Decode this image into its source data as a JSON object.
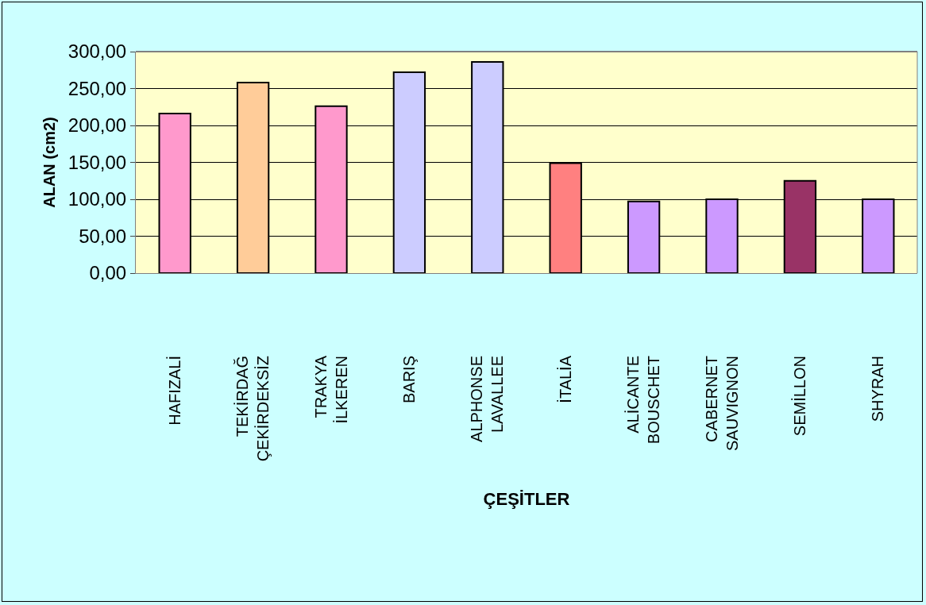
{
  "chart_data": {
    "type": "bar",
    "xlabel": "ÇEŞİTLER",
    "ylabel": "ALAN (cm2)",
    "categories": [
      "HAFIZALİ",
      "TEKİRDAĞ\nÇEKİRDEKSİZ",
      "TRAKYA\nİLKEREN",
      "BARIŞ",
      "ALPHONSE\nLAVALLEE",
      "İTALİA",
      "ALİCANTE\nBOUSCHET",
      "CABERNET\nSAUVIGNON",
      "SEMİLLON",
      "SHYRAH"
    ],
    "values": [
      216,
      258,
      226,
      272,
      286,
      149,
      97,
      100,
      125,
      100
    ],
    "colors": [
      "#ff99cc",
      "#ffcc99",
      "#ff99cc",
      "#ccccff",
      "#ccccff",
      "#ff8080",
      "#cc99ff",
      "#cc99ff",
      "#993366",
      "#cc99ff"
    ],
    "ylim": [
      0,
      300
    ],
    "yticks": [
      {
        "value": 0,
        "label": "0,00"
      },
      {
        "value": 50,
        "label": "50,00"
      },
      {
        "value": 100,
        "label": "100,00"
      },
      {
        "value": 150,
        "label": "150,00"
      },
      {
        "value": 200,
        "label": "200,00"
      },
      {
        "value": 250,
        "label": "250,00"
      },
      {
        "value": 300,
        "label": "300,00"
      }
    ],
    "grid": "y"
  }
}
